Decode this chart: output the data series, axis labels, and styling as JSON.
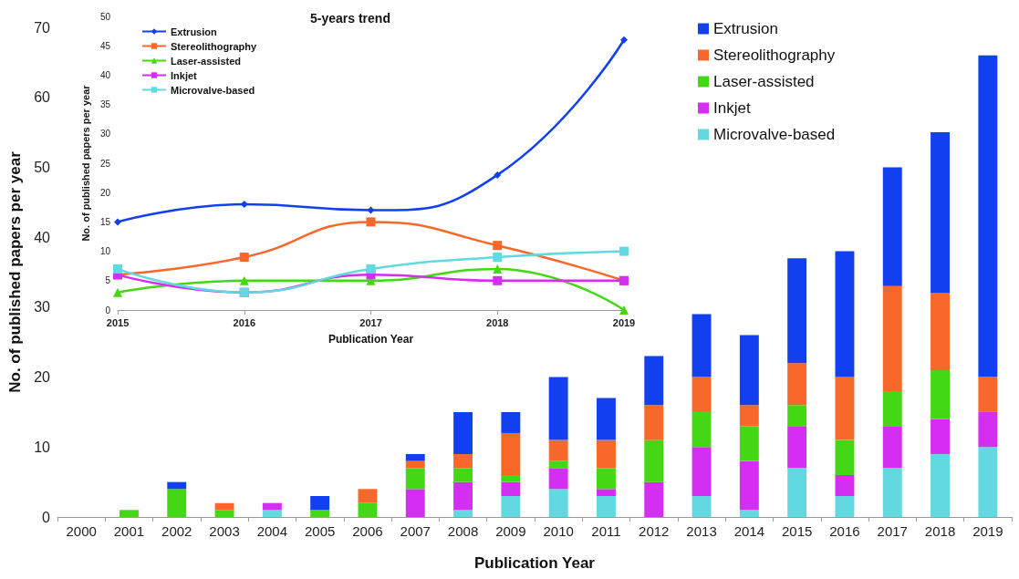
{
  "chart_data": [
    {
      "type": "bar",
      "stacked": true,
      "xlabel": "Publication Year",
      "ylabel": "No. of published papers per year",
      "categories": [
        "2000",
        "2001",
        "2002",
        "2003",
        "2004",
        "2005",
        "2006",
        "2007",
        "2008",
        "2009",
        "2010",
        "2011",
        "2012",
        "2013",
        "2014",
        "2015",
        "2016",
        "2017",
        "2018",
        "2019"
      ],
      "series": [
        {
          "name": "Microvalve-based",
          "color": "#62d9e0",
          "values": [
            0,
            0,
            0,
            0,
            1,
            0,
            0,
            0,
            1,
            3,
            4,
            3,
            0,
            3,
            1,
            7,
            3,
            7,
            9,
            10
          ]
        },
        {
          "name": "Inkjet",
          "color": "#d42ef2",
          "values": [
            0,
            0,
            0,
            0,
            1,
            0,
            0,
            4,
            4,
            2,
            3,
            1,
            5,
            7,
            7,
            6,
            3,
            6,
            5,
            5
          ]
        },
        {
          "name": "Laser-assisted",
          "color": "#44d814",
          "values": [
            0,
            1,
            4,
            1,
            0,
            1,
            2,
            3,
            2,
            1,
            1,
            3,
            6,
            5,
            5,
            3,
            5,
            5,
            7,
            0
          ]
        },
        {
          "name": "Stereolithography",
          "color": "#f7682a",
          "values": [
            0,
            0,
            0,
            1,
            0,
            0,
            2,
            1,
            2,
            6,
            3,
            4,
            5,
            5,
            3,
            6,
            9,
            15,
            11,
            5
          ]
        },
        {
          "name": "Extrusion",
          "color": "#1240f0",
          "values": [
            0,
            0,
            1,
            0,
            0,
            2,
            0,
            1,
            6,
            3,
            9,
            6,
            7,
            9,
            10,
            15,
            18,
            17,
            23,
            46
          ]
        }
      ],
      "ylim": [
        0,
        70
      ],
      "yticks": [
        0,
        10,
        20,
        30,
        40,
        50,
        60,
        70
      ],
      "grid": false,
      "legend": "top right",
      "marker": "square"
    },
    {
      "type": "line",
      "title": "5-years trend",
      "xlabel": "Publication Year",
      "ylabel": "No. of published papers per year",
      "categories": [
        "2015",
        "2016",
        "2017",
        "2018",
        "2019"
      ],
      "series": [
        {
          "name": "Extrusion",
          "color": "#1240f0",
          "marker": "diamond",
          "values": [
            15,
            18,
            17,
            23,
            46
          ]
        },
        {
          "name": "Stereolithography",
          "color": "#f7682a",
          "marker": "square",
          "values": [
            6,
            9,
            15,
            11,
            5
          ]
        },
        {
          "name": "Laser-assisted",
          "color": "#44d814",
          "marker": "triangle",
          "values": [
            3,
            5,
            5,
            7,
            0
          ]
        },
        {
          "name": "Inkjet",
          "color": "#d42ef2",
          "marker": "square",
          "values": [
            6,
            3,
            6,
            5,
            5
          ]
        },
        {
          "name": "Microvalve-based",
          "color": "#62d9e0",
          "marker": "square",
          "values": [
            7,
            3,
            7,
            9,
            10
          ]
        }
      ],
      "ylim": [
        0,
        50
      ],
      "yticks": [
        0,
        5,
        10,
        15,
        20,
        25,
        30,
        35,
        40,
        45,
        50
      ],
      "grid": false,
      "legend": "top left",
      "line_style": "solid"
    }
  ]
}
